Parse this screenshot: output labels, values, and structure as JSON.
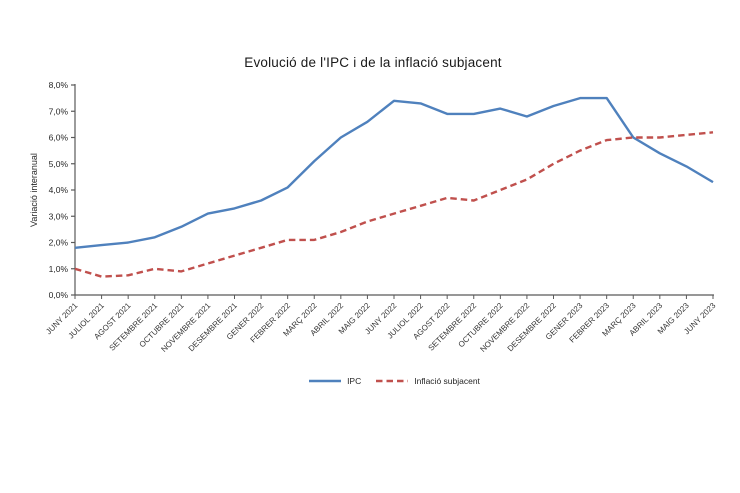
{
  "chart_data": {
    "type": "line",
    "title": "Evolució de l'IPC i de la inflació subjacent",
    "ylabel": "Variació interanual",
    "xlabel": "",
    "ylim": [
      0,
      8
    ],
    "grid": false,
    "legend_position": "bottom",
    "yticks": [
      "0,0%",
      "1,0%",
      "2,0%",
      "3,0%",
      "4,0%",
      "5,0%",
      "6,0%",
      "7,0%",
      "8,0%"
    ],
    "categories": [
      "JUNY 2021",
      "JULIOL 2021",
      "AGOST 2021",
      "SETEMBRE 2021",
      "OCTUBRE 2021",
      "NOVEMBRE 2021",
      "DESEMBRE 2021",
      "GENER 2022",
      "FEBRER 2022",
      "MARÇ 2022",
      "ABRIL 2022",
      "MAIG 2022",
      "JUNY 2022",
      "JULIOL 2022",
      "AGOST 2022",
      "SETEMBRE 2022",
      "OCTUBRE 2022",
      "NOVEMBRE 2022",
      "DESEMBRE 2022",
      "GENER 2023",
      "FEBRER 2023",
      "MARÇ 2023",
      "ABRIL 2023",
      "MAIG 2023",
      "JUNY 2023"
    ],
    "series": [
      {
        "name": "IPC",
        "color": "#4F81BD",
        "style": "solid",
        "values": [
          1.8,
          1.9,
          2.0,
          2.2,
          2.6,
          3.1,
          3.3,
          3.6,
          4.1,
          5.1,
          6.0,
          6.6,
          7.4,
          7.3,
          6.9,
          6.9,
          7.1,
          6.8,
          7.2,
          7.5,
          7.5,
          6.0,
          5.4,
          4.9,
          4.3
        ]
      },
      {
        "name": "Inflació subjacent",
        "color": "#C0504D",
        "style": "dashed",
        "values": [
          1.0,
          0.7,
          0.75,
          1.0,
          0.9,
          1.2,
          1.5,
          1.8,
          2.1,
          2.1,
          2.4,
          2.8,
          3.1,
          3.4,
          3.7,
          3.6,
          4.0,
          4.4,
          5.0,
          5.5,
          5.9,
          6.0,
          6.0,
          6.1,
          6.2
        ]
      }
    ],
    "axis_color": "#595959"
  }
}
